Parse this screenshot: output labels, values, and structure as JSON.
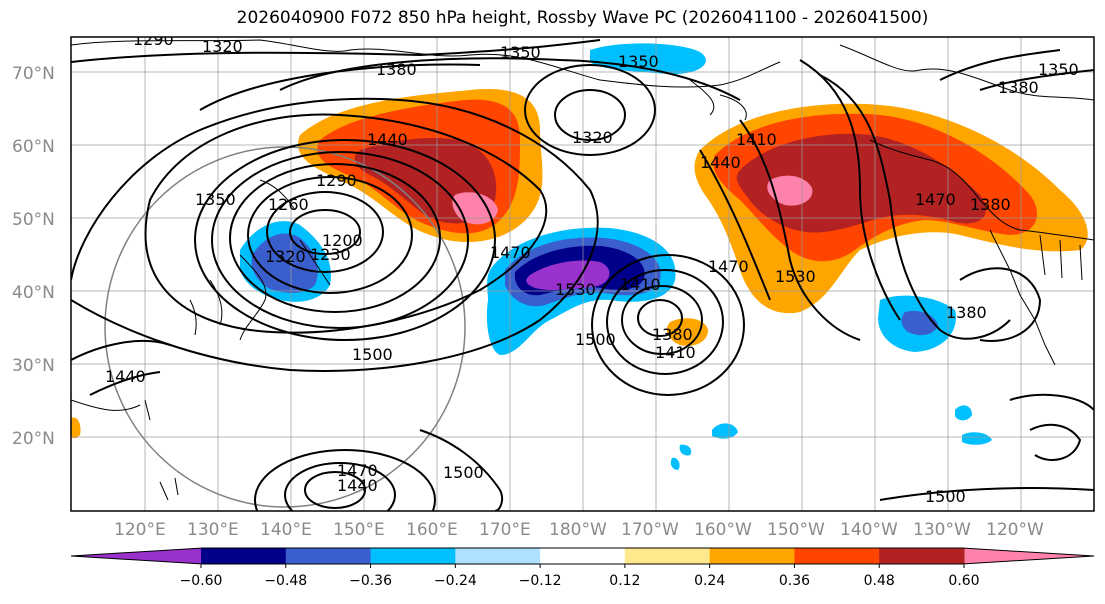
{
  "title": "2026040900 F072 850 hPa height, Rossby Wave PC (2026041100 - 2026041500)",
  "lat_labels": [
    "70°N",
    "60°N",
    "50°N",
    "40°N",
    "30°N",
    "20°N"
  ],
  "lon_labels": [
    "120°E",
    "130°E",
    "140°E",
    "150°E",
    "160°E",
    "170°E",
    "180°W",
    "170°W",
    "160°W",
    "150°W",
    "140°W",
    "130°W",
    "120°W"
  ],
  "contour_labels": [
    "1290",
    "1320",
    "1350",
    "1350",
    "1380",
    "1320",
    "1440",
    "1290",
    "1260",
    "1350",
    "1320",
    "1230",
    "1200",
    "1470",
    "1530",
    "1470",
    "1410",
    "1530",
    "1500",
    "1380",
    "1410",
    "1500",
    "1440",
    "1470",
    "1440",
    "1500",
    "1500",
    "1410",
    "1440",
    "1470",
    "1380",
    "1380",
    "1380",
    "1350"
  ],
  "colorbar": {
    "ticks": [
      "−0.60",
      "−0.48",
      "−0.36",
      "−0.24",
      "−0.12",
      "0.12",
      "0.24",
      "0.36",
      "0.48",
      "0.60"
    ],
    "colors": [
      "#9932cc",
      "#00008b",
      "#3a5fcd",
      "#00bfff",
      "#b0e0ff",
      "#ffffff",
      "#ffe98c",
      "#ffa500",
      "#ff4500",
      "#b22222",
      "#ff82ab"
    ]
  }
}
